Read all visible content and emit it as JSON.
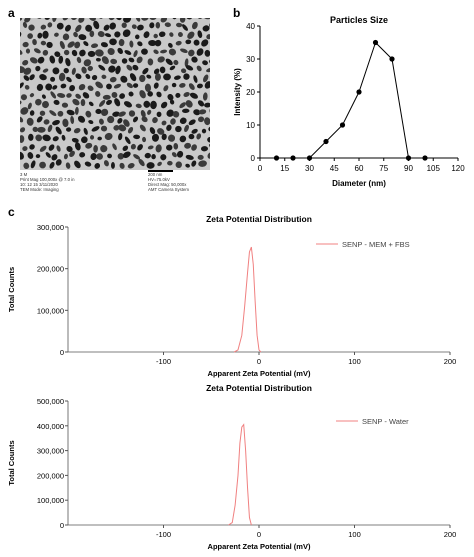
{
  "panels": {
    "a": "a",
    "b": "b",
    "c": "c"
  },
  "tem": {
    "scale_bar_label": "200 nm",
    "caption_left": [
      "3 M",
      "Print Mag 100,000x @ 7.0 in",
      "10: 12 15 3/11/2020",
      "TEM Mode: Imaging"
    ],
    "caption_right": [
      "200 nm",
      "HV=75.0kV",
      "Direct Mag: 50,000x",
      "AMT Camera System"
    ]
  },
  "chart_data": [
    {
      "type": "line",
      "title": "Particles Size",
      "xlabel": "Diameter (nm)",
      "ylabel": "Intensity (%)",
      "xlim": [
        0,
        120
      ],
      "ylim": [
        0,
        40
      ],
      "xticks": [
        0,
        15,
        30,
        45,
        60,
        75,
        90,
        105,
        120
      ],
      "yticks": [
        0,
        10,
        20,
        30,
        40
      ],
      "x": [
        10,
        20,
        30,
        40,
        50,
        60,
        70,
        80,
        90,
        100
      ],
      "series": [
        {
          "values": [
            0,
            0,
            0,
            5,
            10,
            20,
            35,
            30,
            0,
            0
          ]
        }
      ],
      "grid": false,
      "color": "#000000"
    },
    {
      "type": "line",
      "title": "Zeta Potential Distribution",
      "xlabel": "Apparent Zeta Potential (mV)",
      "ylabel": "Total Counts",
      "xlim": [
        -200,
        200
      ],
      "ylim": [
        0,
        300000
      ],
      "xticks": [
        -100,
        0,
        100,
        200
      ],
      "yticks": [
        0,
        100000,
        200000,
        300000
      ],
      "ytick_labels": [
        "0",
        "100,000",
        "200,000",
        "300,000"
      ],
      "x": [
        -26,
        -22,
        -18,
        -15,
        -12,
        -10,
        -8,
        -6,
        -4,
        -2,
        0,
        2
      ],
      "series": [
        {
          "name": "SENP - MEM + FBS",
          "values": [
            0,
            5000,
            40000,
            110000,
            190000,
            240000,
            252000,
            210000,
            120000,
            40000,
            5000,
            0
          ]
        }
      ],
      "legend": "top-right",
      "grid": false,
      "color": "#f08080"
    },
    {
      "type": "line",
      "title": "Zeta Potential Distribution",
      "xlabel": "Apparent Zeta Potential (mV)",
      "ylabel": "Total Counts",
      "xlim": [
        -200,
        200
      ],
      "ylim": [
        0,
        500000
      ],
      "xticks": [
        -100,
        0,
        100,
        200
      ],
      "yticks": [
        0,
        100000,
        200000,
        300000,
        400000,
        500000
      ],
      "ytick_labels": [
        "0",
        "100,000",
        "200,000",
        "300,000",
        "400,000",
        "500,000"
      ],
      "x": [
        -32,
        -28,
        -25,
        -22,
        -20,
        -18,
        -16,
        -14,
        -12,
        -10,
        -8
      ],
      "series": [
        {
          "name": "SENP - Water",
          "values": [
            0,
            10000,
            80000,
            200000,
            330000,
            395000,
            405000,
            300000,
            150000,
            30000,
            0
          ]
        }
      ],
      "legend": "top-right",
      "grid": false,
      "color": "#f08080"
    }
  ]
}
